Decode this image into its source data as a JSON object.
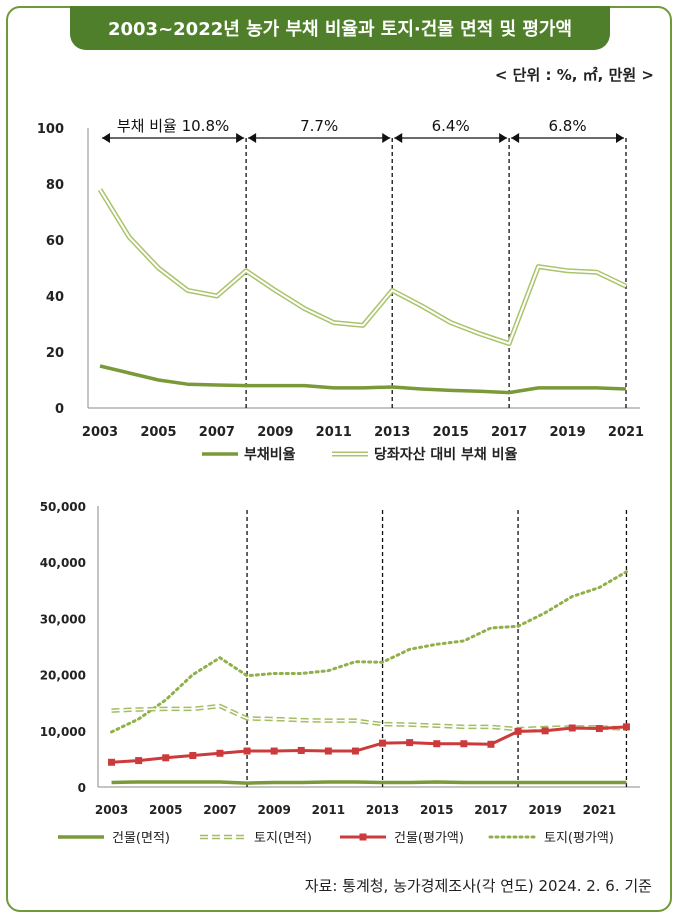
{
  "header": {
    "title": "2003~2022년 농가 부채 비율과 토지·건물 면적 및 평가액",
    "unit": "< 단위 : %, ㎡, 만원 >"
  },
  "source": "자료: 통계청, 농가경제조사(각 연도) 2024. 2. 6. 기준",
  "colors": {
    "frame": "#6f9a3a",
    "title_bg": "#4f7f2a",
    "olive": "#7a9a3a",
    "light_green": "#a9c46a",
    "red": "#cc3b3b"
  },
  "chart_data": [
    {
      "type": "line",
      "x": [
        2003,
        2004,
        2005,
        2006,
        2007,
        2008,
        2009,
        2010,
        2011,
        2012,
        2013,
        2014,
        2015,
        2016,
        2017,
        2018,
        2019,
        2020,
        2021
      ],
      "xticks": [
        "2003",
        "2005",
        "2007",
        "2009",
        "2011",
        "2013",
        "2015",
        "2017",
        "2019",
        "2021"
      ],
      "yticks": [
        "0",
        "20",
        "40",
        "60",
        "80",
        "100"
      ],
      "ylim": [
        0,
        100
      ],
      "series": [
        {
          "name": "부채비율",
          "values": [
            15,
            12.5,
            10,
            8.5,
            8.2,
            8,
            8,
            8,
            7.2,
            7.2,
            7.5,
            6.8,
            6.3,
            6,
            5.5,
            7.2,
            7.2,
            7.2,
            6.8
          ]
        },
        {
          "name": "당좌자산 대비 부채 비율",
          "values": [
            78,
            61,
            50,
            42,
            40,
            49,
            42,
            35.5,
            30.5,
            29.5,
            42,
            36.5,
            30.5,
            26.5,
            23,
            50.5,
            49,
            48.5,
            43.5
          ]
        }
      ],
      "period_dividers": [
        2008,
        2013,
        2017,
        2021
      ],
      "period_labels": [
        "부채 비율 10.8%",
        "7.7%",
        "6.4%",
        "6.8%"
      ]
    },
    {
      "type": "line",
      "x": [
        2003,
        2004,
        2005,
        2006,
        2007,
        2008,
        2009,
        2010,
        2011,
        2012,
        2013,
        2014,
        2015,
        2016,
        2017,
        2018,
        2019,
        2020,
        2021,
        2022
      ],
      "xticks": [
        "2003",
        "2005",
        "2007",
        "2009",
        "2011",
        "2013",
        "2015",
        "2017",
        "2019",
        "2021"
      ],
      "yticks": [
        "0",
        "10,000",
        "20,000",
        "30,000",
        "40,000",
        "50,000"
      ],
      "ylim": [
        0,
        50000
      ],
      "series": [
        {
          "name": "건물(면적)",
          "values": [
            800,
            900,
            900,
            900,
            900,
            700,
            800,
            800,
            900,
            900,
            800,
            800,
            900,
            800,
            800,
            800,
            800,
            800,
            800,
            800
          ]
        },
        {
          "name": "토지(면적)",
          "values": [
            13600,
            13800,
            13900,
            13900,
            14400,
            12200,
            12100,
            11900,
            11800,
            11800,
            11200,
            11100,
            10900,
            10700,
            10700,
            10300,
            10500,
            10600,
            10600,
            10400
          ]
        },
        {
          "name": "건물(평가액)",
          "values": [
            4400,
            4700,
            5200,
            5600,
            6000,
            6400,
            6400,
            6500,
            6400,
            6400,
            7800,
            7900,
            7700,
            7700,
            7600,
            9900,
            10000,
            10500,
            10400,
            10700
          ]
        },
        {
          "name": "토지(평가액)",
          "values": [
            9800,
            12100,
            15500,
            20000,
            23000,
            19800,
            20200,
            20200,
            20700,
            22300,
            22200,
            24500,
            25400,
            26000,
            28300,
            28600,
            31000,
            33900,
            35500,
            38300
          ]
        }
      ],
      "period_dividers": [
        2008,
        2013,
        2018,
        2022
      ]
    }
  ]
}
